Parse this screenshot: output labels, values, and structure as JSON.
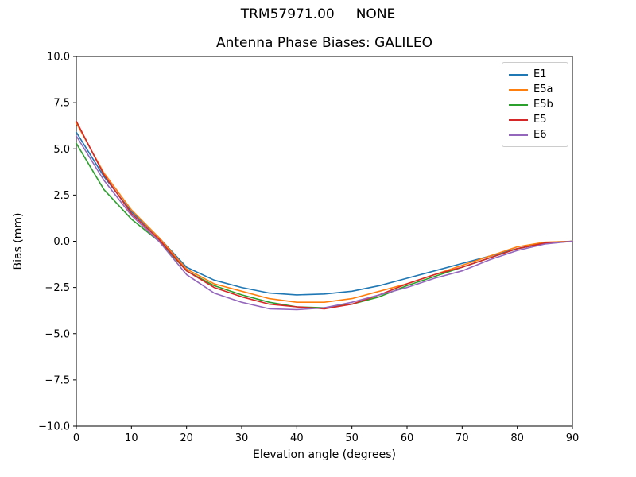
{
  "chart_data": {
    "type": "line",
    "suptitle": "TRM57971.00     NONE",
    "title": "Antenna Phase Biases: GALILEO",
    "xlabel": "Elevation angle (degrees)",
    "ylabel": "Bias (mm)",
    "xlim": [
      0,
      90
    ],
    "ylim": [
      -10,
      10
    ],
    "xticks": [
      0,
      10,
      20,
      30,
      40,
      50,
      60,
      70,
      80,
      90
    ],
    "yticks": [
      -10,
      -7.5,
      -5,
      -2.5,
      0,
      2.5,
      5,
      7.5,
      10
    ],
    "grid": false,
    "legend_position": "upper right",
    "x": [
      0,
      5,
      10,
      15,
      20,
      25,
      30,
      35,
      40,
      45,
      50,
      55,
      60,
      65,
      70,
      75,
      80,
      85,
      90
    ],
    "series": [
      {
        "name": "E1",
        "color": "#1f77b4",
        "values": [
          5.9,
          3.5,
          1.6,
          0.2,
          -1.4,
          -2.1,
          -2.5,
          -2.8,
          -2.9,
          -2.85,
          -2.7,
          -2.4,
          -2.0,
          -1.6,
          -1.2,
          -0.8,
          -0.4,
          -0.1,
          0.0
        ]
      },
      {
        "name": "E5a",
        "color": "#ff7f0e",
        "values": [
          6.4,
          3.7,
          1.7,
          0.2,
          -1.5,
          -2.3,
          -2.7,
          -3.1,
          -3.3,
          -3.3,
          -3.1,
          -2.7,
          -2.3,
          -1.8,
          -1.3,
          -0.8,
          -0.3,
          -0.05,
          0.0
        ]
      },
      {
        "name": "E5b",
        "color": "#2ca02c",
        "values": [
          5.3,
          2.8,
          1.2,
          0.0,
          -1.6,
          -2.4,
          -2.9,
          -3.3,
          -3.55,
          -3.6,
          -3.4,
          -3.0,
          -2.4,
          -1.9,
          -1.4,
          -0.9,
          -0.4,
          -0.1,
          0.0
        ]
      },
      {
        "name": "E5",
        "color": "#d62728",
        "values": [
          6.5,
          3.6,
          1.5,
          0.1,
          -1.6,
          -2.5,
          -3.0,
          -3.4,
          -3.55,
          -3.65,
          -3.4,
          -2.9,
          -2.3,
          -1.8,
          -1.4,
          -0.9,
          -0.4,
          -0.1,
          0.0
        ]
      },
      {
        "name": "E6",
        "color": "#9467bd",
        "values": [
          5.7,
          3.3,
          1.4,
          0.0,
          -1.8,
          -2.8,
          -3.3,
          -3.65,
          -3.7,
          -3.6,
          -3.3,
          -2.9,
          -2.5,
          -2.0,
          -1.6,
          -1.0,
          -0.5,
          -0.15,
          0.0
        ]
      }
    ]
  }
}
